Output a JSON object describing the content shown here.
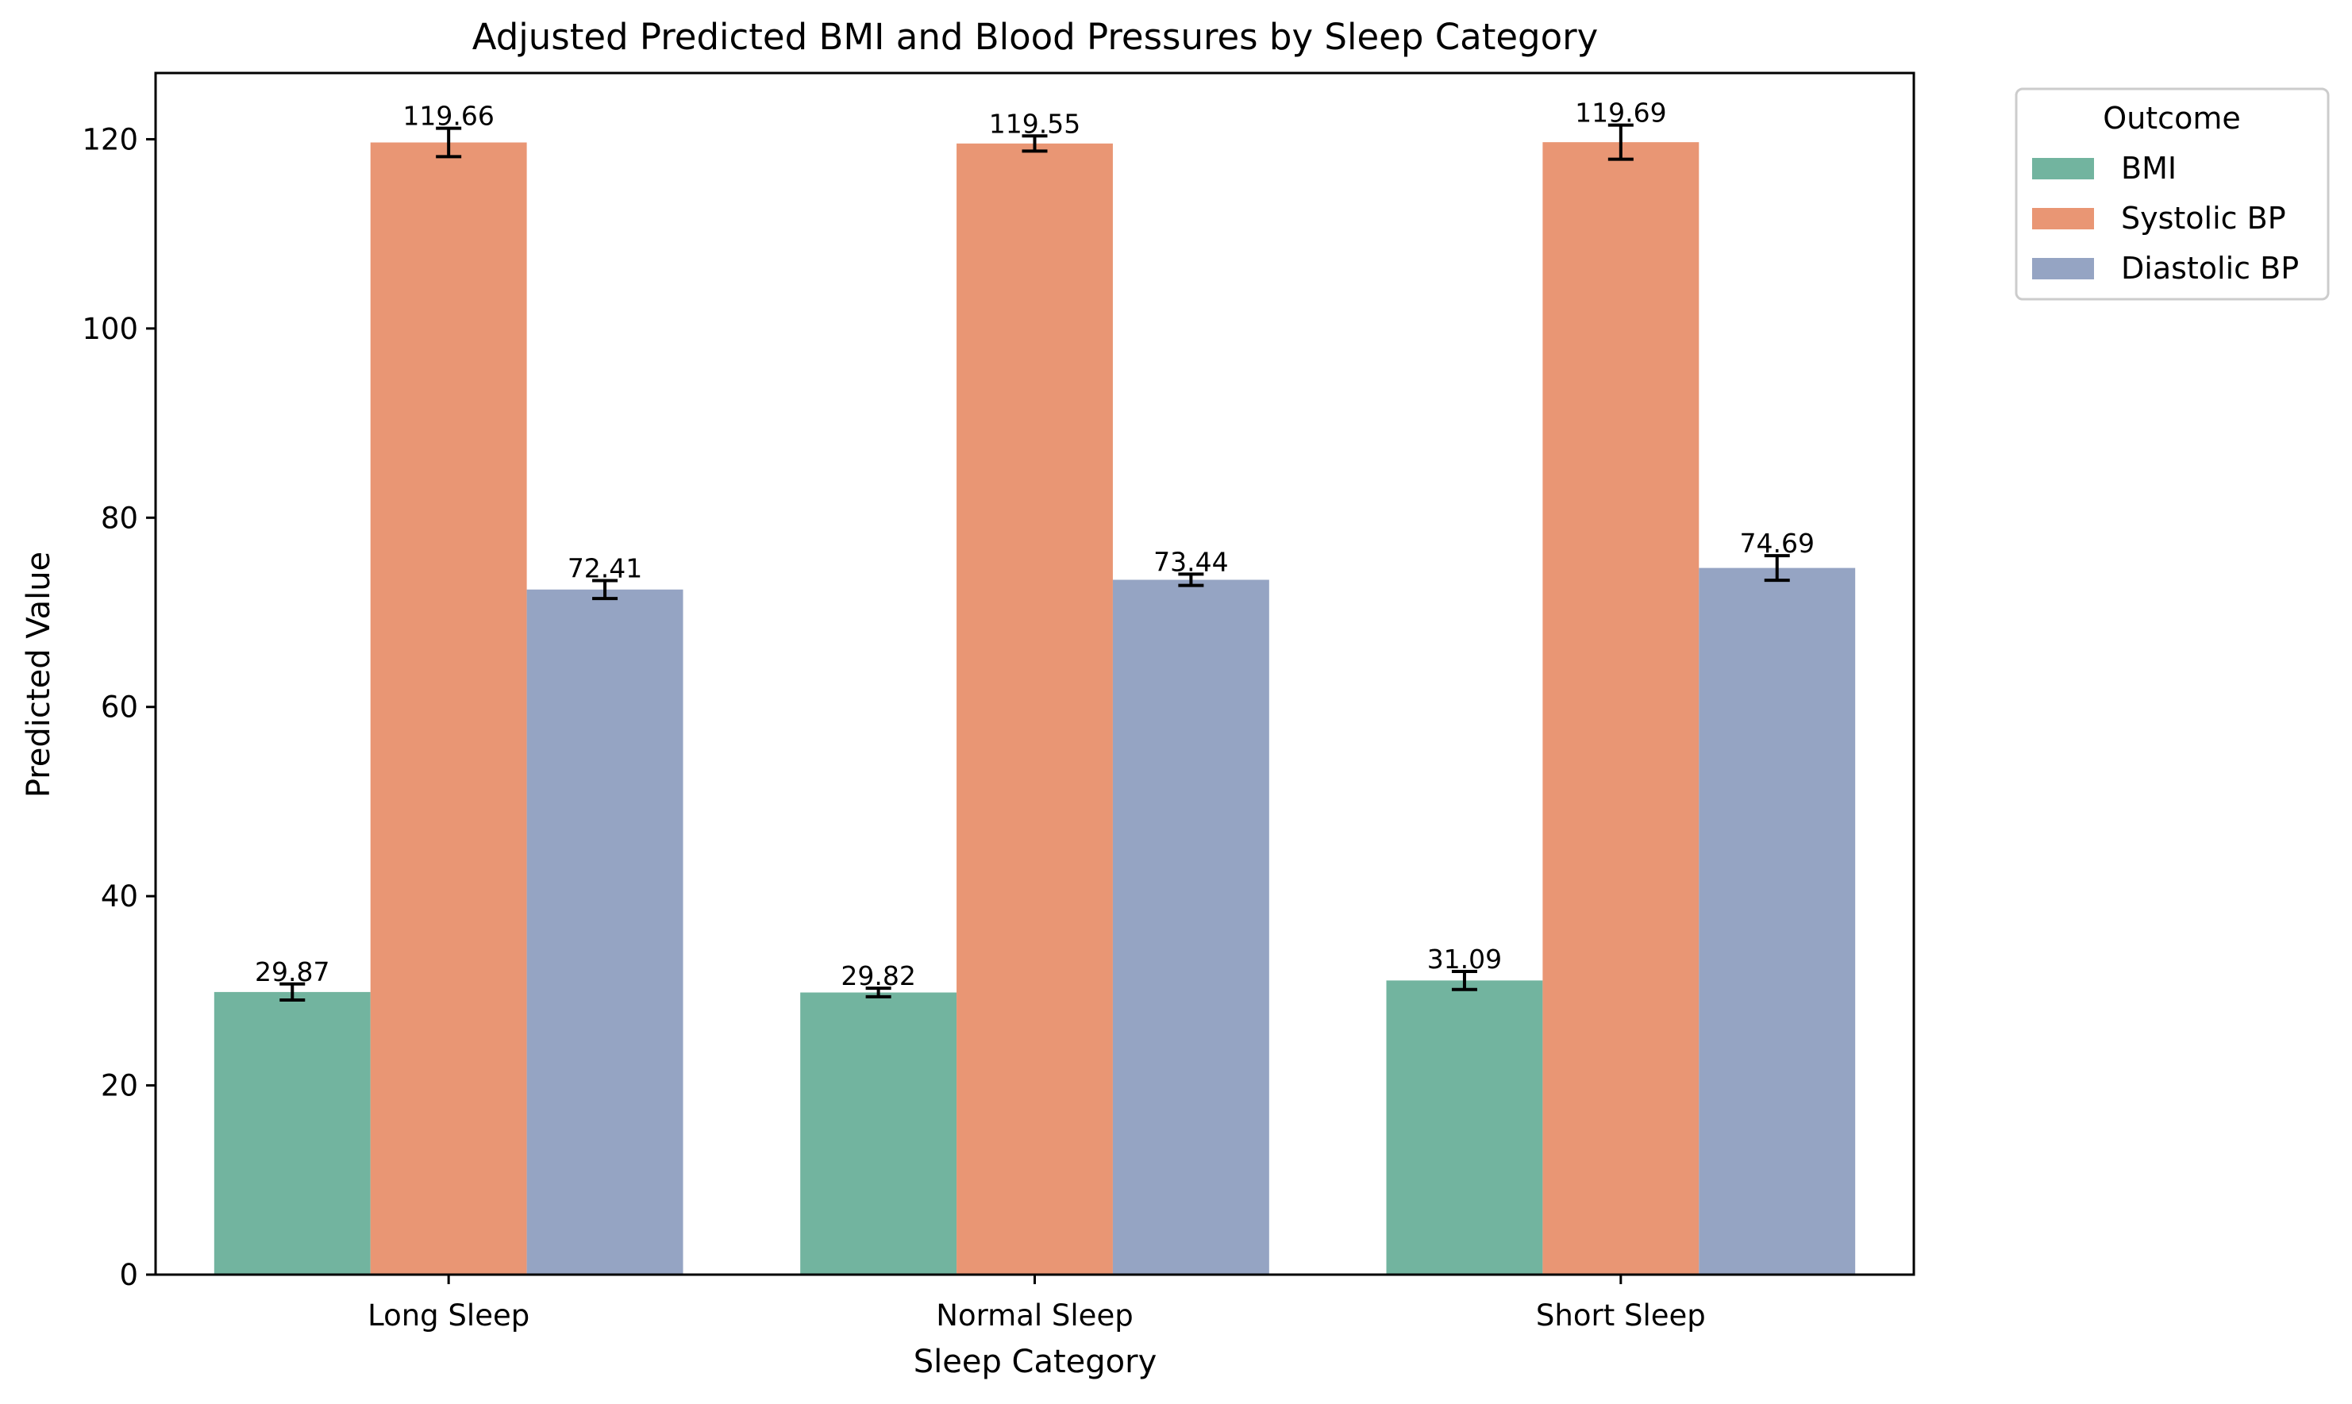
{
  "chart_data": {
    "type": "bar",
    "title": "Adjusted Predicted BMI and Blood Pressures by Sleep Category",
    "xlabel": "Sleep Category",
    "ylabel": "Predicted Value",
    "categories": [
      "Long Sleep",
      "Normal Sleep",
      "Short Sleep"
    ],
    "ylim": [
      0,
      127
    ],
    "yticks": [
      0,
      20,
      40,
      60,
      80,
      100,
      120
    ],
    "legend": {
      "title": "Outcome",
      "placement": "outside-right"
    },
    "series": [
      {
        "name": "BMI",
        "color": "#72b49f",
        "values": [
          29.87,
          29.82,
          31.09
        ],
        "labels": [
          "29.87",
          "29.82",
          "31.09"
        ],
        "error": [
          0.85,
          0.45,
          0.95
        ]
      },
      {
        "name": "Systolic BP",
        "color": "#e99674",
        "values": [
          119.66,
          119.55,
          119.69
        ],
        "labels": [
          "119.66",
          "119.55",
          "119.69"
        ],
        "error": [
          1.5,
          0.8,
          1.8
        ]
      },
      {
        "name": "Diastolic BP",
        "color": "#95a4c3",
        "values": [
          72.41,
          73.44,
          74.69
        ],
        "labels": [
          "72.41",
          "73.44",
          "74.69"
        ],
        "error": [
          0.95,
          0.6,
          1.3
        ]
      }
    ],
    "grid": false
  }
}
